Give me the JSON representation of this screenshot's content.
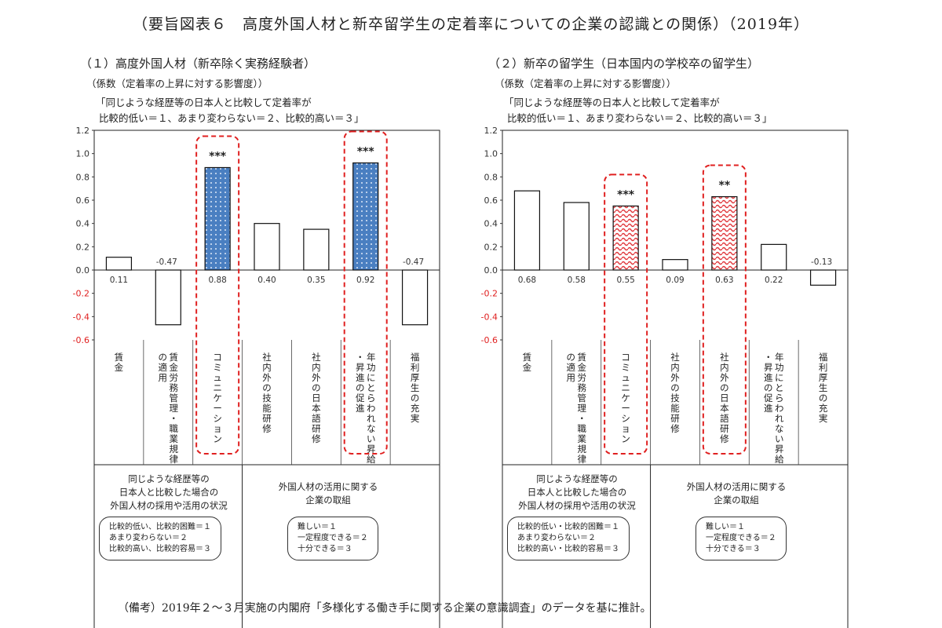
{
  "title": "（要旨図表６　高度外国人材と新卒留学生の定着率についての企業の認識との関係）（2019年）",
  "footnote": "（備考）2019年２～３月実施の内閣府「多様化する働き手に関する企業の意識調査」のデータを基に推計。",
  "colors": {
    "highlight_blue": "#4a7fc1",
    "highlight_red": "#e0363a",
    "dash_red": "#e02020",
    "neg_tick": "#e02020"
  },
  "chart_data": [
    {
      "type": "bar",
      "title": "（１）高度外国人材（新卒除く実務経験者）",
      "subtitle": "（係数（定着率の上昇に対する影響度））",
      "note_line1": "「同じような経歴等の日本人と比較して定着率が",
      "note_line2": "比較的低い＝１、あまり変わらない＝２、比較的高い＝３」",
      "ylim": [
        -0.6,
        1.2
      ],
      "yticks": [
        "1.2",
        "1.0",
        "0.8",
        "0.6",
        "0.4",
        "0.2",
        "0.0",
        "-0.2",
        "-0.4",
        "-0.6"
      ],
      "categories": [
        "賃金",
        "賃金労務管理・職業規律の適用",
        "コミュニケーション",
        "社内外の技能研修",
        "社内外の日本語研修",
        "年功にとらわれない昇給・昇進の促進",
        "福利厚生の充実"
      ],
      "values": [
        0.11,
        -0.47,
        0.88,
        0.4,
        0.35,
        0.92,
        -0.47
      ],
      "value_labels": [
        "0.11",
        "-0.47",
        "0.88",
        "0.40",
        "0.35",
        "0.92",
        "-0.47"
      ],
      "highlighted": [
        false,
        false,
        true,
        false,
        false,
        true,
        false
      ],
      "significance": [
        "",
        "",
        "***",
        "",
        "",
        "***",
        ""
      ],
      "highlight_style": "dots",
      "group_left_text": [
        "同じような経歴等の",
        "日本人と比較した場合の",
        "外国人材の採用や活用の状況"
      ],
      "group_right_text": [
        "外国人材の活用に関する",
        "企業の取組"
      ],
      "legend_left": [
        "比較的低い、比較的困難＝１",
        "あまり変わらない＝２",
        "比較的高い、比較的容易＝３"
      ],
      "legend_right": [
        "難しい＝１",
        "一定程度できる＝２",
        "十分できる＝３"
      ]
    },
    {
      "type": "bar",
      "title": "（２）新卒の留学生（日本国内の学校卒の留学生）",
      "subtitle": "（係数（定着率の上昇に対する影響度））",
      "note_line1": "「同じような経歴等の日本人と比較して定着率が",
      "note_line2": "比較的低い＝１、あまり変わらない＝２、比較的高い＝３」",
      "ylim": [
        -0.6,
        1.2
      ],
      "yticks": [
        "1.2",
        "1.0",
        "0.8",
        "0.6",
        "0.4",
        "0.2",
        "0.0",
        "-0.2",
        "-0.4",
        "-0.6"
      ],
      "categories": [
        "賃金",
        "賃金労務管理・職業規律の適用",
        "コミュニケーション",
        "社内外の技能研修",
        "社内外の日本語研修",
        "年功にとらわれない昇給・昇進の促進",
        "福利厚生の充実"
      ],
      "values": [
        0.68,
        0.58,
        0.55,
        0.09,
        0.63,
        0.22,
        -0.13
      ],
      "value_labels": [
        "0.68",
        "0.58",
        "0.55",
        "0.09",
        "0.63",
        "0.22",
        "-0.13"
      ],
      "highlighted": [
        false,
        false,
        true,
        false,
        true,
        false,
        false
      ],
      "significance": [
        "",
        "",
        "***",
        "",
        "**",
        "",
        ""
      ],
      "highlight_style": "waves",
      "group_left_text": [
        "同じような経歴等の",
        "日本人と比較した場合の",
        "外国人材の採用や活用の状況"
      ],
      "group_right_text": [
        "外国人材の活用に関する",
        "企業の取組"
      ],
      "legend_left": [
        "比較的低い・比較的困難＝１",
        "あまり変わらない＝２",
        "比較的高い・比較的容易＝３"
      ],
      "legend_right": [
        "難しい＝１",
        "一定程度できる＝２",
        "十分できる＝３"
      ]
    }
  ]
}
